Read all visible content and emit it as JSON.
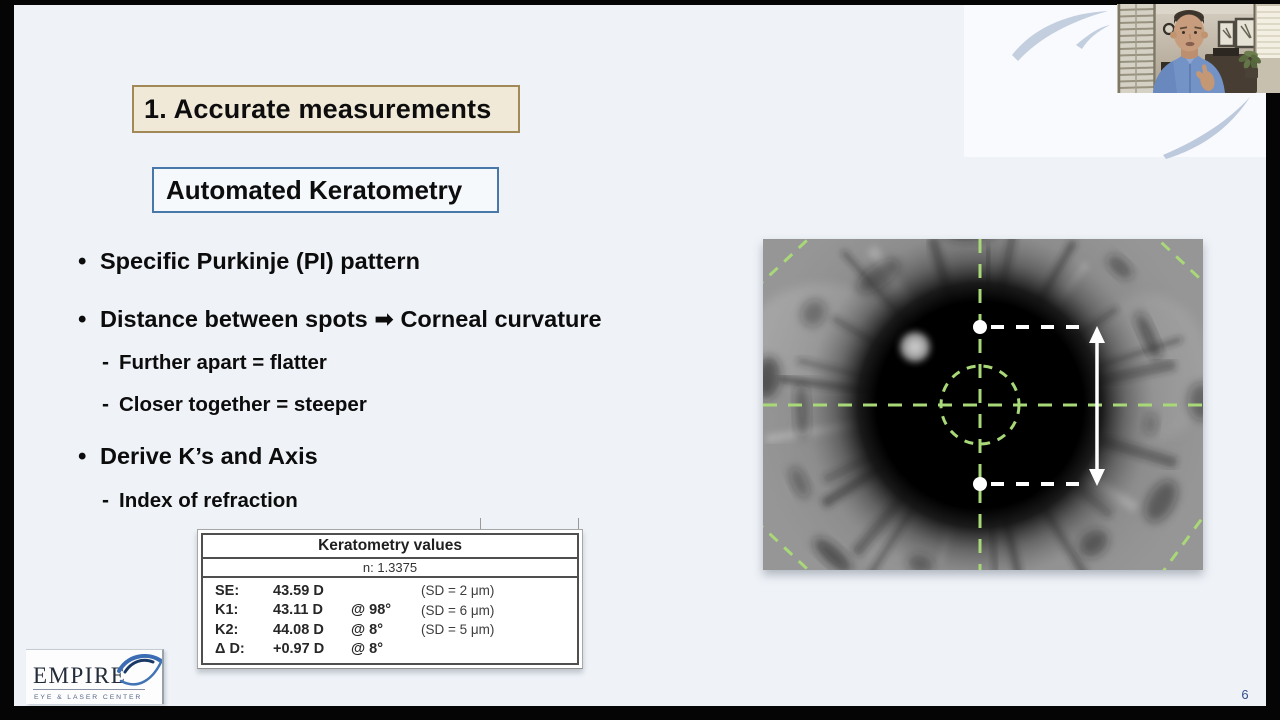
{
  "slide": {
    "title": "1. Accurate measurements",
    "subtitle": "Automated Keratometry",
    "bullets": [
      {
        "marker": "•",
        "text": "Specific Purkinje (PI) pattern"
      },
      {
        "marker": "•",
        "text": "Distance between spots ➡ Corneal curvature"
      },
      {
        "marker": "-",
        "text": "Further apart = flatter"
      },
      {
        "marker": "-",
        "text": "Closer together =  steeper"
      },
      {
        "marker": "•",
        "text": "Derive K’s and Axis"
      },
      {
        "marker": "-",
        "text": "Index of refraction"
      }
    ],
    "page_number": "6"
  },
  "keratometry_table": {
    "title": "Keratometry values",
    "index_of_refraction": "n: 1.3375",
    "rows": [
      {
        "label": "SE:",
        "value": "43.59 D",
        "axis": "",
        "sd": "(SD = 2 μm)"
      },
      {
        "label": "K1:",
        "value": "43.11 D",
        "axis": "@ 98°",
        "sd": "(SD = 6 μm)"
      },
      {
        "label": "K2:",
        "value": "44.08 D",
        "axis": "@ 8°",
        "sd": "(SD = 5 μm)"
      },
      {
        "label": "Δ D:",
        "value": "+0.97 D",
        "axis": "@ 8°",
        "sd": ""
      }
    ]
  },
  "logo": {
    "name": "EMPIRE",
    "tagline": "EYE & LASER CENTER"
  },
  "colors": {
    "slide_background": "#eff3f8",
    "title_box_background": "#f0e9d8",
    "title_box_border": "#a18a58",
    "subtitle_box_border": "#4878aa",
    "overlay_green": "#a9d878",
    "logo_blue": "#3a6db3",
    "page_number_blue": "#33508a"
  }
}
